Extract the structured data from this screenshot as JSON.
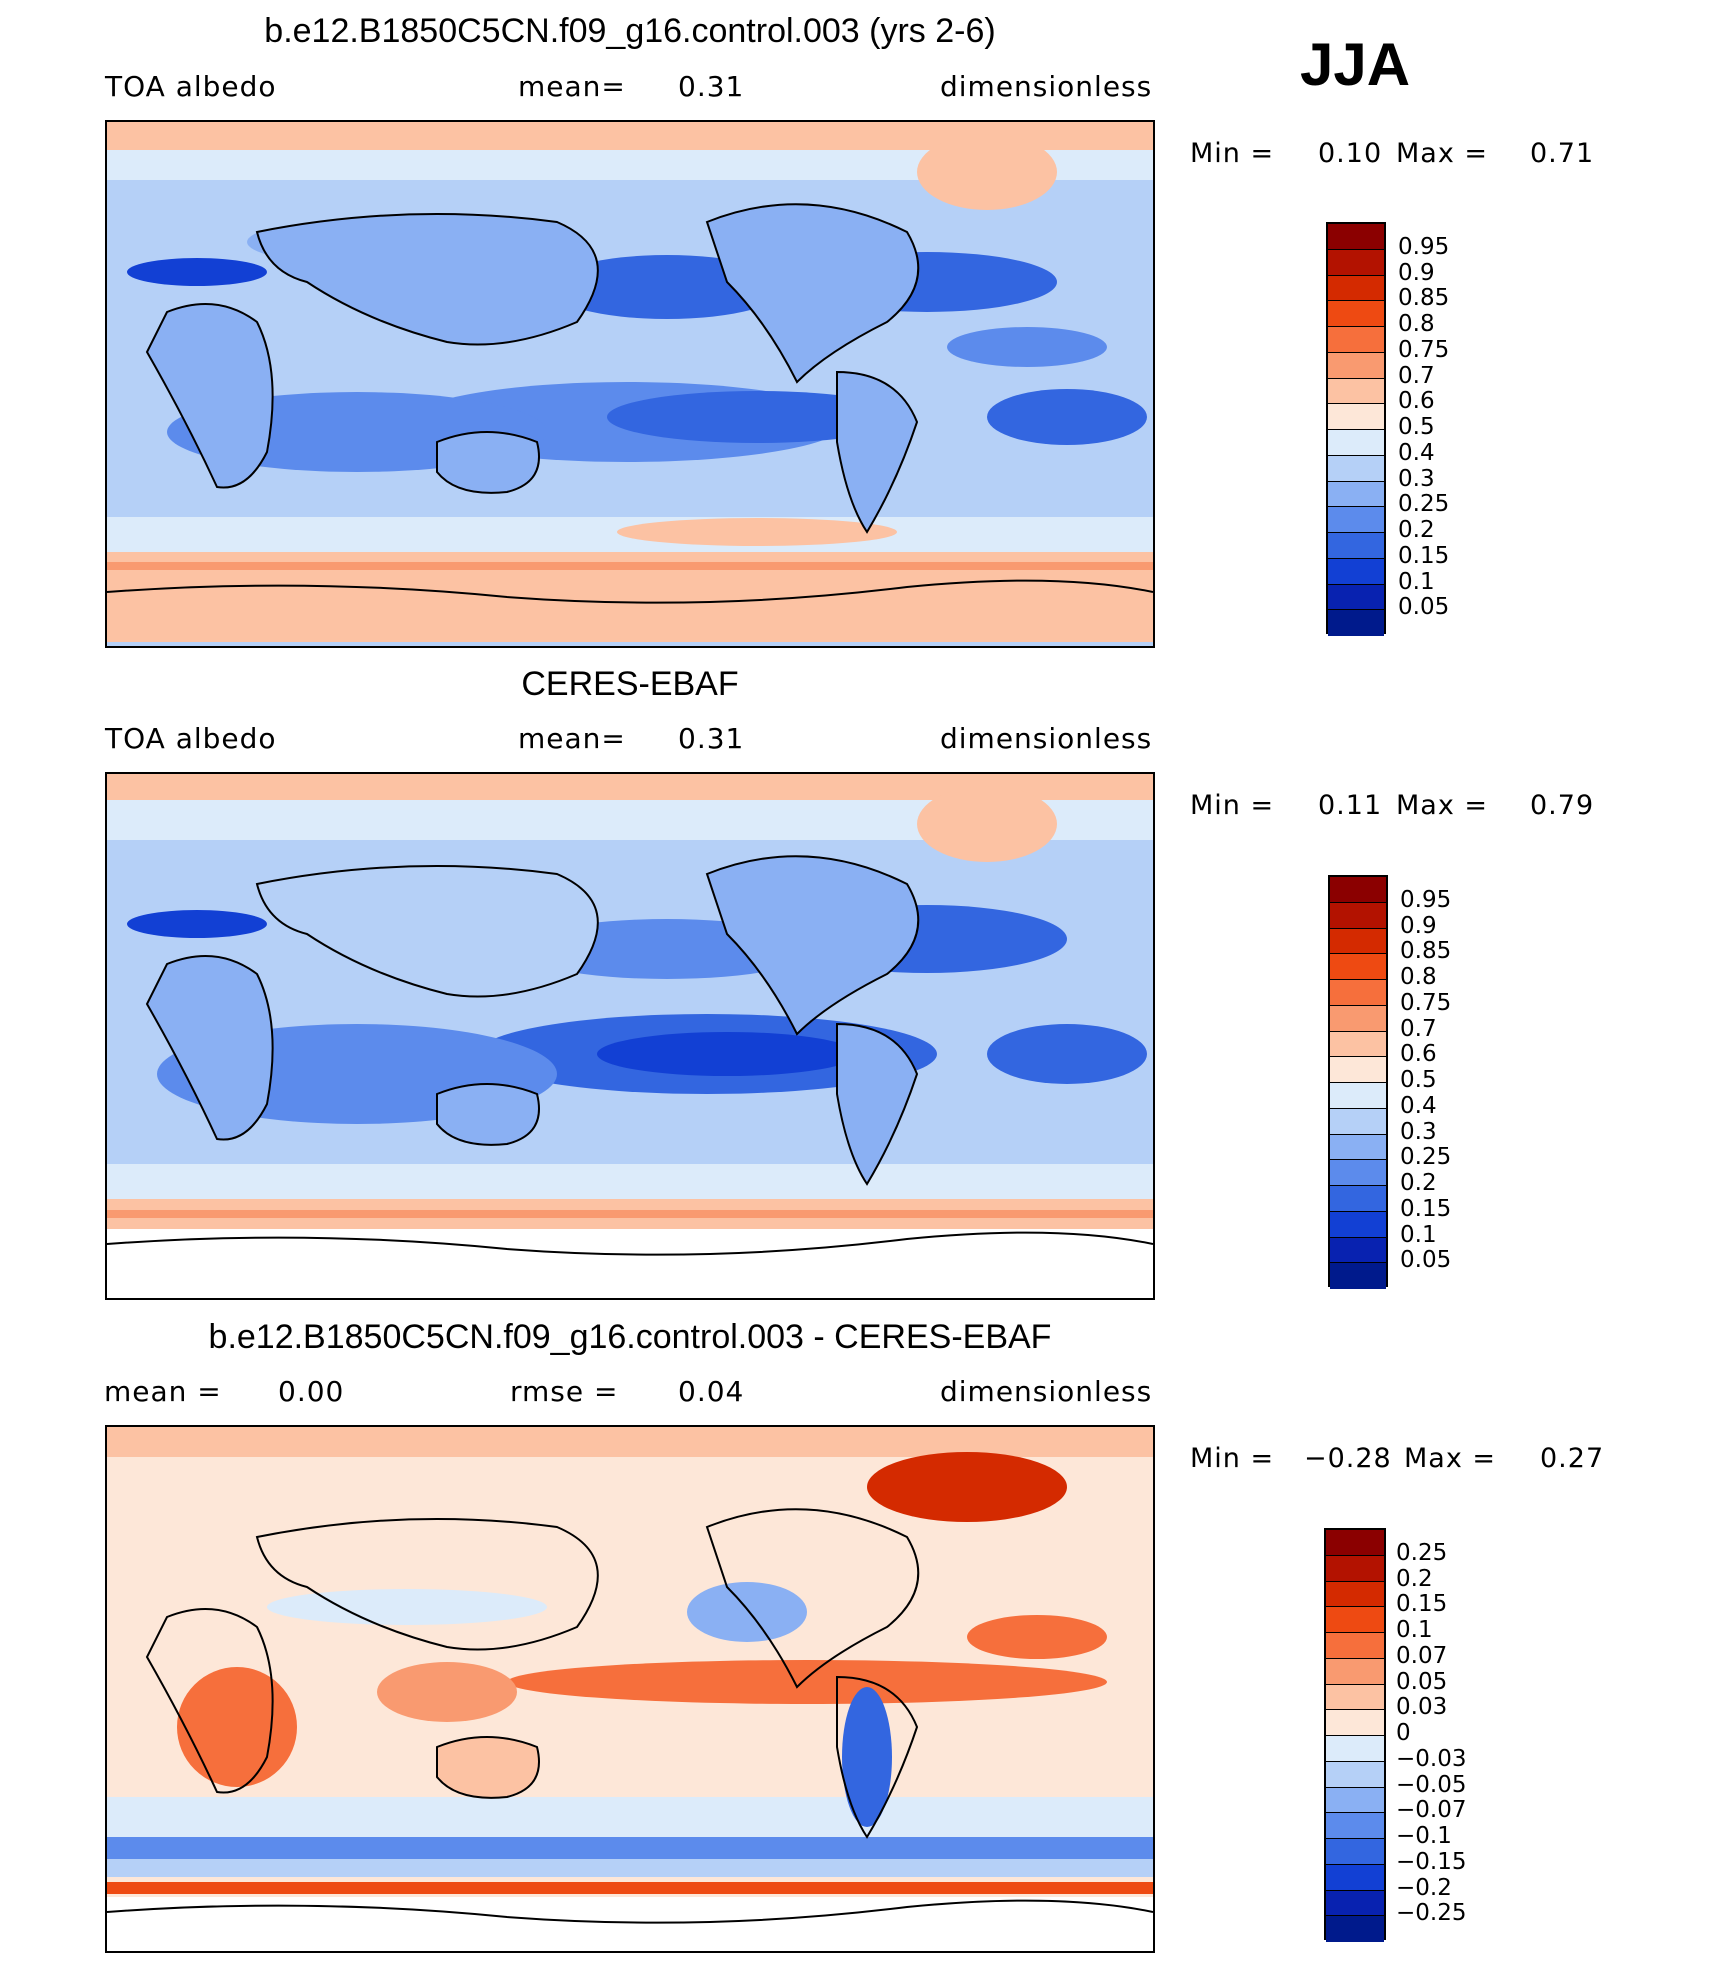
{
  "season": "JJA",
  "panels": [
    {
      "title": "b.e12.B1850C5CN.f09_g16.control.003 (yrs 2-6)",
      "left_label": "TOA  albedo",
      "center_label": "mean=",
      "center_value": "0.31",
      "right_label": "dimensionless",
      "min_label": "Min =",
      "min_value": "0.10",
      "max_label": "Max =",
      "max_value": "0.71",
      "field": "model"
    },
    {
      "title": "CERES-EBAF",
      "left_label": "TOA  albedo",
      "center_label": "mean=",
      "center_value": "0.31",
      "right_label": "dimensionless",
      "min_label": "Min =",
      "min_value": "0.11",
      "max_label": "Max =",
      "max_value": "0.79",
      "field": "obs"
    },
    {
      "title": "b.e12.B1850C5CN.f09_g16.control.003 - CERES-EBAF",
      "left_label": "mean =",
      "left_value": "0.00",
      "center_label": "rmse =",
      "center_value": "0.04",
      "right_label": "dimensionless",
      "min_label": "Min =",
      "min_value": "−0.28",
      "max_label": "Max =",
      "max_value": "0.27",
      "field": "diff"
    }
  ],
  "colorbars": {
    "albedo": {
      "labels": [
        "0.95",
        "0.9",
        "0.85",
        "0.8",
        "0.75",
        "0.7",
        "0.6",
        "0.5",
        "0.4",
        "0.3",
        "0.25",
        "0.2",
        "0.15",
        "0.1",
        "0.05"
      ],
      "colors": [
        "#8b0000",
        "#b31200",
        "#d42a00",
        "#ee4a12",
        "#f66f3c",
        "#f99a70",
        "#fcc2a3",
        "#fde7d8",
        "#dcebfa",
        "#b5d0f7",
        "#8ab0f3",
        "#5c8bec",
        "#3366e0",
        "#1240d4",
        "#0822b0",
        "#001a8c"
      ]
    },
    "diff": {
      "labels": [
        "0.25",
        "0.2",
        "0.15",
        "0.1",
        "0.07",
        "0.05",
        "0.03",
        "0",
        "−0.03",
        "−0.05",
        "−0.07",
        "−0.1",
        "−0.15",
        "−0.2",
        "−0.25"
      ],
      "colors": [
        "#8b0000",
        "#b31200",
        "#d42a00",
        "#ee4a12",
        "#f66f3c",
        "#f99a70",
        "#fcc2a3",
        "#fde7d8",
        "#dcebfa",
        "#b5d0f7",
        "#8ab0f3",
        "#5c8bec",
        "#3366e0",
        "#1240d4",
        "#0822b0",
        "#001a8c"
      ]
    }
  }
}
